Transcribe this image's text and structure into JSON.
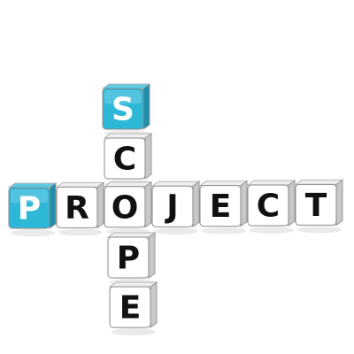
{
  "puzzle": {
    "across_word": "PROJECT",
    "down_word": "SCOPE",
    "highlight_color": "#2db8d8",
    "tile_color": "#ffffff",
    "letter_color": "#111111",
    "highlight_letter_color": "#ffffff"
  }
}
